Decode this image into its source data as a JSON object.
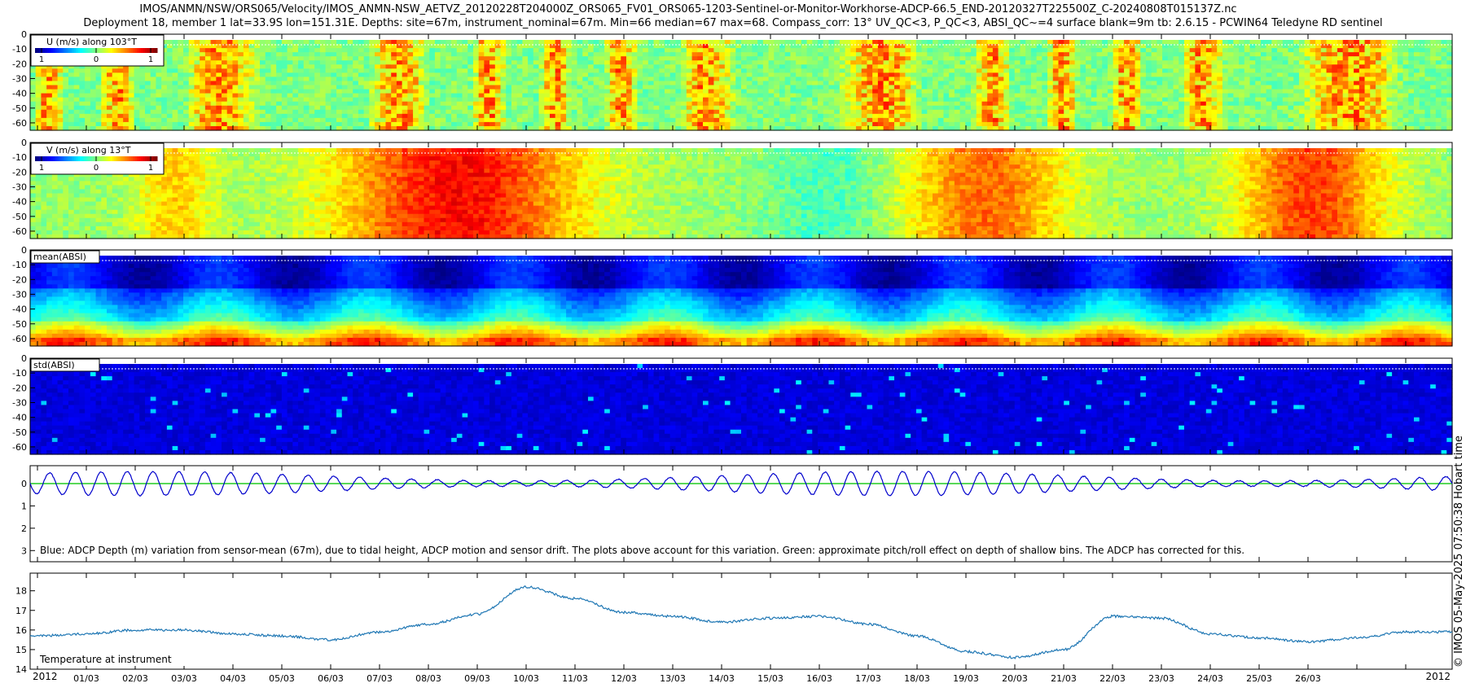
{
  "header": {
    "title_line1": "IMOS/ANMN/NSW/ORS065/Velocity/IMOS_ANMN-NSW_AETVZ_20120228T204000Z_ORS065_FV01_ORS065-1203-Sentinel-or-Monitor-Workhorse-ADCP-66.5_END-20120327T225500Z_C-20240808T015137Z.nc",
    "title_line2": "Deployment 18, member 1 lat=33.9S lon=151.31E. Depths: site=67m, instrument_nominal=67m. Min=66 median=67 max=68. Compass_corr: 13° UV_QC<3, P_QC<3, ABSI_QC~=4 surface blank=9m tb: 2.6.15 - PCWIN64 Teledyne RD sentinel"
  },
  "side_text": "© IMOS 05-May-2025 07:50:38 Hobart time",
  "colors": {
    "axis": "#000000",
    "depth_line": "#0000cc",
    "pitch_roll_line": "#22cc22",
    "temperature_line": "#1f77b4"
  },
  "chart_data": [
    {
      "type": "heatmap",
      "label": "U (m/s) along 103°T",
      "colorbar_ticks": [
        "1",
        "0",
        "1"
      ],
      "colorbar_range": [
        -1,
        1
      ],
      "ylim": [
        65,
        0
      ],
      "yticks": [
        "0",
        "10",
        "20",
        "30",
        "40",
        "50",
        "60"
      ],
      "dominant_value": 0.0,
      "notes": "mostly near 0 (green) with streaks of yellow (+0.3 to +0.5)"
    },
    {
      "type": "heatmap",
      "label": "V (m/s) along 13°T",
      "colorbar_ticks": [
        "1",
        "0",
        "1"
      ],
      "colorbar_range": [
        -1,
        1
      ],
      "ylim": [
        65,
        0
      ],
      "yticks": [
        "0",
        "10",
        "20",
        "30",
        "40",
        "50",
        "60"
      ],
      "maxima": [
        {
          "time": "07/03 - 09/03",
          "value": 0.9
        },
        {
          "time": "18/03 - 19/03",
          "value": 0.5
        },
        {
          "time": "24/03 - 26/03",
          "value": 0.6
        }
      ]
    },
    {
      "type": "heatmap",
      "label": "mean(ABSI)",
      "ylim": [
        65,
        0
      ],
      "yticks": [
        "0",
        "10",
        "20",
        "30",
        "40",
        "50",
        "60"
      ],
      "notes": "dark blue at 10-30 m, cyan 30-50 m, green/yellow near 55-60 m, orange/red at bottom"
    },
    {
      "type": "heatmap",
      "label": "std(ABSI)",
      "ylim": [
        65,
        0
      ],
      "yticks": [
        "0",
        "10",
        "20",
        "30",
        "40",
        "50",
        "60"
      ],
      "notes": "mostly dark blue with sparse light-blue vertical streaks"
    },
    {
      "type": "line",
      "label": "Blue: ADCP Depth (m) variation from sensor-mean (67m), due to tidal height, ADCP motion and sensor drift. The plots above account for this variation. Green: approximate pitch/roll effect on depth of shallow bins. The ADCP has corrected for this.",
      "ylim": [
        3.5,
        -0.8
      ],
      "yticks": [
        "0",
        "1",
        "2",
        "3"
      ],
      "series": [
        {
          "amplitude_m": 0.6,
          "tidal_cycles": 55,
          "mean": 0
        }
      ],
      "green_line_value": 0
    },
    {
      "type": "line",
      "label": "Temperature at instrument",
      "ylim": [
        14,
        18.9
      ],
      "yticks": [
        "14",
        "15",
        "16",
        "17",
        "18"
      ],
      "x_day_values": [
        28,
        29,
        30,
        31,
        32,
        33,
        34,
        35,
        36,
        37,
        38,
        39,
        40,
        41,
        42,
        43,
        44,
        45,
        46,
        47,
        48,
        49,
        50,
        51,
        52,
        53,
        54,
        55,
        56,
        57
      ],
      "values": [
        15.7,
        15.7,
        15.8,
        16.0,
        16.0,
        15.8,
        15.7,
        15.5,
        15.9,
        16.3,
        16.8,
        18.2,
        17.6,
        16.9,
        16.7,
        16.4,
        16.6,
        16.7,
        16.3,
        15.7,
        14.9,
        14.6,
        15.0,
        16.7,
        16.6,
        15.8,
        15.6,
        15.4,
        15.6,
        15.9
      ]
    }
  ],
  "time_axis": {
    "start_label": "2012",
    "end_label": "2012",
    "tick_labels": [
      "01/03",
      "02/03",
      "03/03",
      "04/03",
      "05/03",
      "06/03",
      "07/03",
      "08/03",
      "09/03",
      "10/03",
      "11/03",
      "12/03",
      "13/03",
      "14/03",
      "15/03",
      "16/03",
      "17/03",
      "18/03",
      "19/03",
      "20/03",
      "21/03",
      "22/03",
      "23/03",
      "24/03",
      "25/03",
      "26/03"
    ]
  }
}
